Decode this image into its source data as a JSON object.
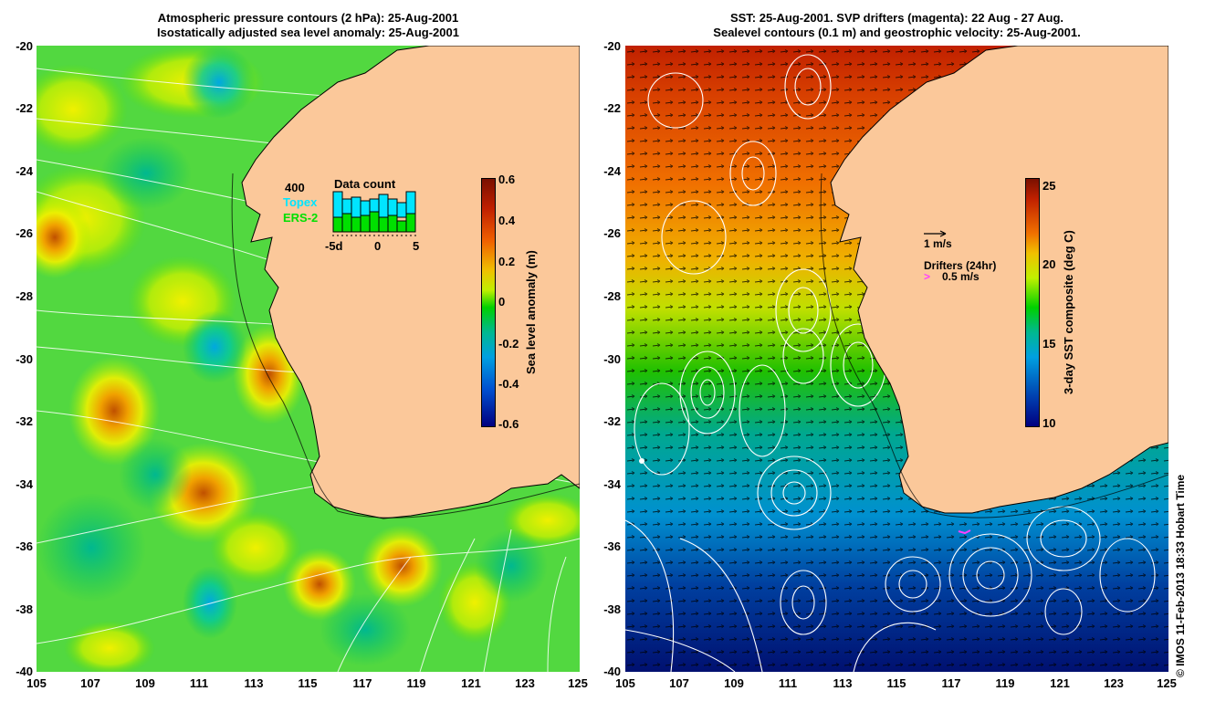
{
  "left_panel": {
    "title_line1": "Atmospheric pressure contours (2 hPa): 25-Aug-2001",
    "title_line2": "Isostatically adjusted sea level anomaly: 25-Aug-2001",
    "colorbar": {
      "title": "Sea level anomaly (m)",
      "ticks": [
        "0.6",
        "0.4",
        "0.2",
        "0",
        "-0.2",
        "-0.4",
        "-0.6"
      ],
      "range": [
        -0.6,
        0.6
      ]
    },
    "data_count_inset": {
      "title": "Data count",
      "scale_label": "400",
      "legend_topex": "Topex",
      "legend_ers2": "ERS-2",
      "x_ticks": [
        "-5d",
        "0",
        "5"
      ],
      "topex_color": "#00e5ff",
      "ers2_color": "#00e000"
    }
  },
  "right_panel": {
    "title_line1": "SST: 25-Aug-2001. SVP drifters (magenta): 22 Aug - 27 Aug.",
    "title_line2": "Sealevel contours (0.1 m) and geostrophic velocity: 25-Aug-2001.",
    "colorbar": {
      "title": "3-day SST composite (deg C)",
      "ticks": [
        "25",
        "20",
        "15",
        "10"
      ],
      "range": [
        10,
        26
      ]
    },
    "legend": {
      "velocity_scale": "1 m/s",
      "drifters_title": "Drifters (24hr)",
      "drifters_scale": "0.5 m/s",
      "drifter_color": "#ff40ff"
    }
  },
  "axes": {
    "y_ticks": [
      "-20",
      "-22",
      "-24",
      "-26",
      "-28",
      "-30",
      "-32",
      "-34",
      "-36",
      "-38",
      "-40"
    ],
    "x_ticks": [
      "105",
      "107",
      "109",
      "111",
      "113",
      "115",
      "117",
      "119",
      "121",
      "123",
      "125"
    ],
    "lat_range": [
      -40,
      -20
    ],
    "lon_range": [
      105,
      125
    ]
  },
  "land_color": "#fbc89a",
  "credit": "© IMOS 11-Feb-2013 18:33 Hobart Time"
}
